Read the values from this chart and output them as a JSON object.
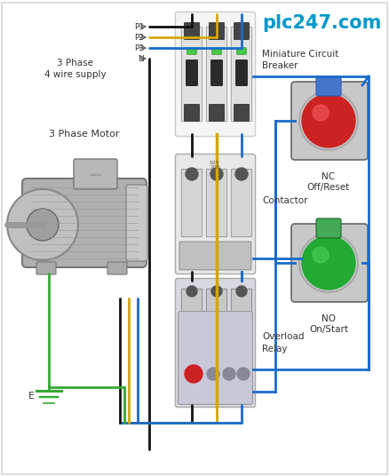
{
  "bg_color": "#ffffff",
  "title": "plc247.com",
  "title_color": "#0099cc",
  "labels": {
    "phase_supply": "3 Phase\n4 wire supply",
    "motor": "3 Phase Motor",
    "mcb": "Miniature Circuit\nBreaker",
    "contactor": "Contactor",
    "overload": "Overload\nRelay",
    "nc": "NC\nOff/Reset",
    "no": "NO\nOn/Start",
    "earth": "E"
  },
  "wire_colors": {
    "blue": "#1a6bcc",
    "yellow": "#d4a800",
    "black": "#111111",
    "green": "#33aa33"
  },
  "p_labels": [
    "P1",
    "P2",
    "P3",
    "N"
  ]
}
